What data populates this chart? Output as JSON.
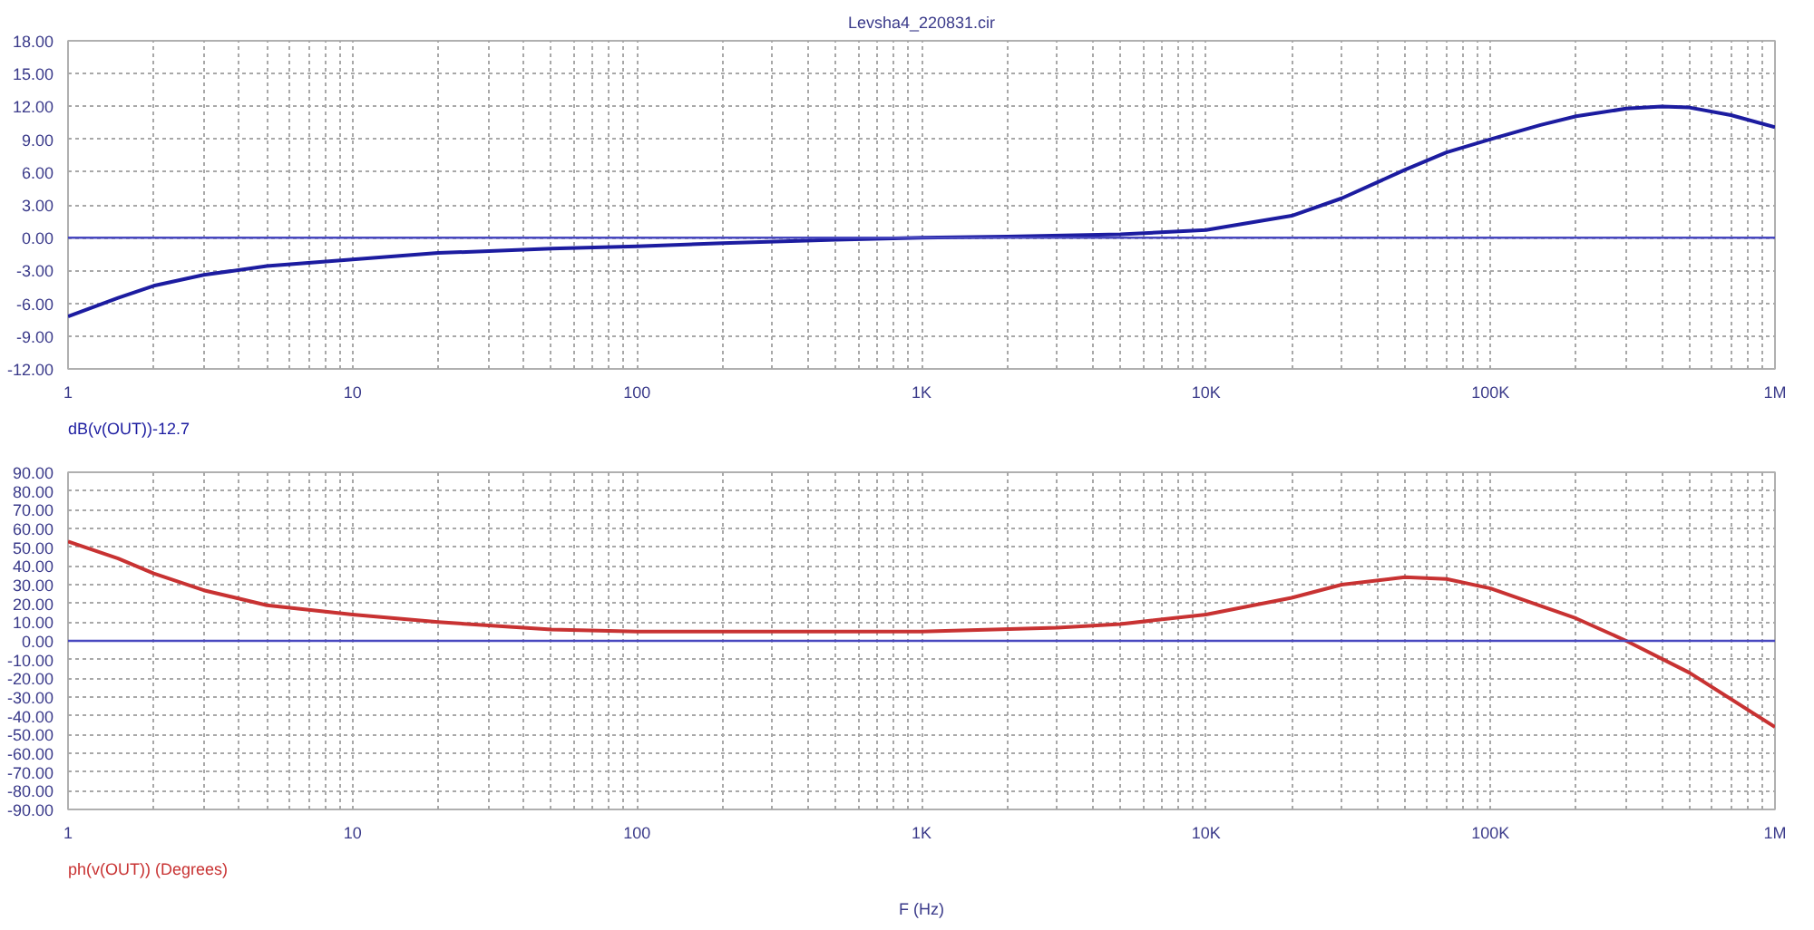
{
  "chart_data": [
    {
      "type": "line",
      "title": "Levsha4_220831.cir",
      "annotations": [
        "dB(v(OUT))-12.7"
      ],
      "log": "x",
      "grid": true,
      "line_style": "solid",
      "xlim": [
        1,
        1000000
      ],
      "ylim": [
        -12,
        18
      ],
      "xticks": [
        1,
        {
          "value": 2,
          "label": null
        },
        {
          "value": 3,
          "label": null
        },
        {
          "value": 4,
          "label": null
        },
        {
          "value": 5,
          "label": null
        },
        {
          "value": 6,
          "label": null
        },
        {
          "value": 7,
          "label": null
        },
        {
          "value": 8,
          "label": null
        },
        {
          "value": 9,
          "label": null
        },
        10,
        {
          "value": 20,
          "label": null
        },
        {
          "value": 30,
          "label": null
        },
        {
          "value": 40,
          "label": null
        },
        {
          "value": 50,
          "label": null
        },
        {
          "value": 60,
          "label": null
        },
        {
          "value": 70,
          "label": null
        },
        {
          "value": 80,
          "label": null
        },
        {
          "value": 90,
          "label": null
        },
        100,
        {
          "value": 200,
          "label": null
        },
        {
          "value": 300,
          "label": null
        },
        {
          "value": 400,
          "label": null
        },
        {
          "value": 500,
          "label": null
        },
        {
          "value": 600,
          "label": null
        },
        {
          "value": 700,
          "label": null
        },
        {
          "value": 800,
          "label": null
        },
        {
          "value": 900,
          "label": null
        },
        {
          "value": 1000,
          "label": "1K"
        },
        {
          "value": 2000,
          "label": null
        },
        {
          "value": 3000,
          "label": null
        },
        {
          "value": 4000,
          "label": null
        },
        {
          "value": 5000,
          "label": null
        },
        {
          "value": 6000,
          "label": null
        },
        {
          "value": 7000,
          "label": null
        },
        {
          "value": 8000,
          "label": null
        },
        {
          "value": 9000,
          "label": null
        },
        {
          "value": 10000,
          "label": "10K"
        },
        {
          "value": 20000,
          "label": null
        },
        {
          "value": 30000,
          "label": null
        },
        {
          "value": 40000,
          "label": null
        },
        {
          "value": 50000,
          "label": null
        },
        {
          "value": 60000,
          "label": null
        },
        {
          "value": 70000,
          "label": null
        },
        {
          "value": 80000,
          "label": null
        },
        {
          "value": 90000,
          "label": null
        },
        {
          "value": 100000,
          "label": "100K"
        },
        {
          "value": 200000,
          "label": null
        },
        {
          "value": 300000,
          "label": null
        },
        {
          "value": 400000,
          "label": null
        },
        {
          "value": 500000,
          "label": null
        },
        {
          "value": 600000,
          "label": null
        },
        {
          "value": 700000,
          "label": null
        },
        {
          "value": 800000,
          "label": null
        },
        {
          "value": 900000,
          "label": null
        },
        {
          "value": 1000000,
          "label": "1M"
        }
      ],
      "yticks": [
        {
          "value": -12,
          "label": "-12.00"
        },
        {
          "value": -9,
          "label": "-9.00"
        },
        {
          "value": -6,
          "label": "-6.00"
        },
        {
          "value": -3,
          "label": "-3.00"
        },
        {
          "value": 0,
          "label": "0.00"
        },
        {
          "value": 3,
          "label": "3.00"
        },
        {
          "value": 6,
          "label": "6.00"
        },
        {
          "value": 9,
          "label": "9.00"
        },
        {
          "value": 12,
          "label": "12.00"
        },
        {
          "value": 15,
          "label": "15.00"
        },
        {
          "value": 18,
          "label": "18.00"
        }
      ],
      "x": [
        1,
        1.5,
        2,
        3,
        5,
        10,
        20,
        50,
        100,
        200,
        500,
        1000,
        2000,
        5000,
        10000,
        20000,
        30000,
        50000,
        70000,
        100000,
        150000,
        200000,
        300000,
        400000,
        500000,
        700000,
        1000000
      ],
      "series": [
        {
          "color": "#1c1ca0",
          "values": [
            -7.2,
            -5.5,
            -4.4,
            -3.4,
            -2.6,
            -2.0,
            -1.4,
            -1.0,
            -0.8,
            -0.5,
            -0.2,
            0,
            0.1,
            0.3,
            0.7,
            2.0,
            3.6,
            6.2,
            7.8,
            9.0,
            10.3,
            11.1,
            11.8,
            12.0,
            11.9,
            11.2,
            10.1
          ]
        }
      ],
      "ref_lines": [
        {
          "axis": "y",
          "value": 0,
          "color": "#4848c0"
        }
      ]
    },
    {
      "type": "line",
      "annotations": [
        "ph(v(OUT)) (Degrees)"
      ],
      "xlabel": "F (Hz)",
      "log": "x",
      "grid": true,
      "line_style": "solid",
      "xlim": [
        1,
        1000000
      ],
      "ylim": [
        -90,
        90
      ],
      "xticks": [
        1,
        {
          "value": 2,
          "label": null
        },
        {
          "value": 3,
          "label": null
        },
        {
          "value": 4,
          "label": null
        },
        {
          "value": 5,
          "label": null
        },
        {
          "value": 6,
          "label": null
        },
        {
          "value": 7,
          "label": null
        },
        {
          "value": 8,
          "label": null
        },
        {
          "value": 9,
          "label": null
        },
        10,
        {
          "value": 20,
          "label": null
        },
        {
          "value": 30,
          "label": null
        },
        {
          "value": 40,
          "label": null
        },
        {
          "value": 50,
          "label": null
        },
        {
          "value": 60,
          "label": null
        },
        {
          "value": 70,
          "label": null
        },
        {
          "value": 80,
          "label": null
        },
        {
          "value": 90,
          "label": null
        },
        100,
        {
          "value": 200,
          "label": null
        },
        {
          "value": 300,
          "label": null
        },
        {
          "value": 400,
          "label": null
        },
        {
          "value": 500,
          "label": null
        },
        {
          "value": 600,
          "label": null
        },
        {
          "value": 700,
          "label": null
        },
        {
          "value": 800,
          "label": null
        },
        {
          "value": 900,
          "label": null
        },
        {
          "value": 1000,
          "label": "1K"
        },
        {
          "value": 2000,
          "label": null
        },
        {
          "value": 3000,
          "label": null
        },
        {
          "value": 4000,
          "label": null
        },
        {
          "value": 5000,
          "label": null
        },
        {
          "value": 6000,
          "label": null
        },
        {
          "value": 7000,
          "label": null
        },
        {
          "value": 8000,
          "label": null
        },
        {
          "value": 9000,
          "label": null
        },
        {
          "value": 10000,
          "label": "10K"
        },
        {
          "value": 20000,
          "label": null
        },
        {
          "value": 30000,
          "label": null
        },
        {
          "value": 40000,
          "label": null
        },
        {
          "value": 50000,
          "label": null
        },
        {
          "value": 60000,
          "label": null
        },
        {
          "value": 70000,
          "label": null
        },
        {
          "value": 80000,
          "label": null
        },
        {
          "value": 90000,
          "label": null
        },
        {
          "value": 100000,
          "label": "100K"
        },
        {
          "value": 200000,
          "label": null
        },
        {
          "value": 300000,
          "label": null
        },
        {
          "value": 400000,
          "label": null
        },
        {
          "value": 500000,
          "label": null
        },
        {
          "value": 600000,
          "label": null
        },
        {
          "value": 700000,
          "label": null
        },
        {
          "value": 800000,
          "label": null
        },
        {
          "value": 900000,
          "label": null
        },
        {
          "value": 1000000,
          "label": "1M"
        }
      ],
      "yticks": [
        {
          "value": -90,
          "label": "-90.00"
        },
        {
          "value": -80,
          "label": "-80.00"
        },
        {
          "value": -70,
          "label": "-70.00"
        },
        {
          "value": -60,
          "label": "-60.00"
        },
        {
          "value": -50,
          "label": "-50.00"
        },
        {
          "value": -40,
          "label": "-40.00"
        },
        {
          "value": -30,
          "label": "-30.00"
        },
        {
          "value": -20,
          "label": "-20.00"
        },
        {
          "value": -10,
          "label": "-10.00"
        },
        {
          "value": 0,
          "label": "0.00"
        },
        {
          "value": 10,
          "label": "10.00"
        },
        {
          "value": 20,
          "label": "20.00"
        },
        {
          "value": 30,
          "label": "30.00"
        },
        {
          "value": 40,
          "label": "40.00"
        },
        {
          "value": 50,
          "label": "50.00"
        },
        {
          "value": 60,
          "label": "60.00"
        },
        {
          "value": 70,
          "label": "70.00"
        },
        {
          "value": 80,
          "label": "80.00"
        },
        {
          "value": 90,
          "label": "90.00"
        }
      ],
      "x": [
        1,
        1.5,
        2,
        3,
        5,
        10,
        20,
        50,
        100,
        1000,
        3000,
        5000,
        10000,
        20000,
        30000,
        50000,
        70000,
        100000,
        200000,
        300000,
        500000,
        1000000
      ],
      "series": [
        {
          "color": "#c83232",
          "values": [
            53,
            44,
            36,
            27,
            19,
            14,
            10,
            6,
            5,
            5,
            7,
            9,
            14,
            23,
            30,
            34,
            33,
            28,
            12,
            0,
            -17,
            -46
          ]
        }
      ],
      "ref_lines": [
        {
          "axis": "y",
          "value": 0,
          "color": "#4848c0"
        }
      ]
    }
  ]
}
